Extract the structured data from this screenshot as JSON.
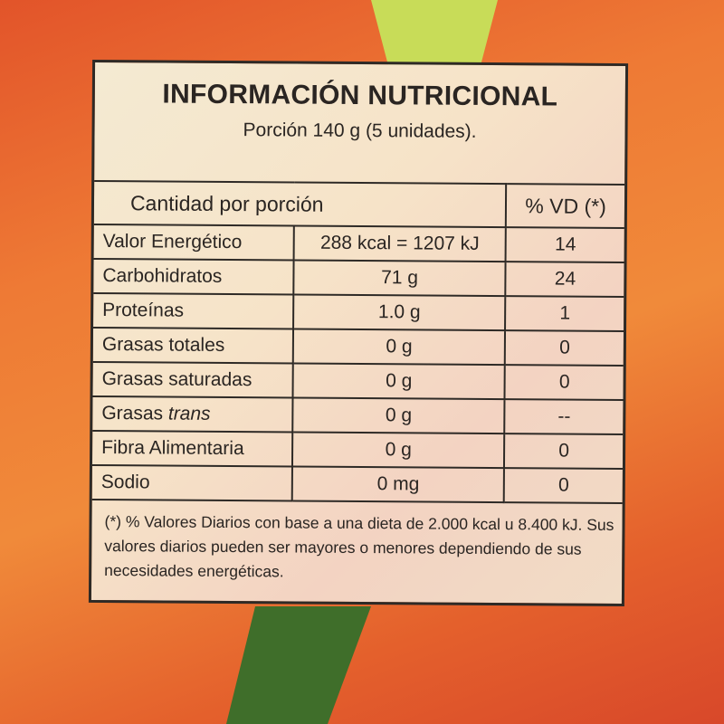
{
  "label": {
    "title": "INFORMACIÓN NUTRICIONAL",
    "portion": "Porción 140 g (5 unidades).",
    "header": {
      "amount": "Cantidad por porción",
      "vd": "% VD (*)"
    },
    "rows": [
      {
        "name": "Valor Energético",
        "value": "288 kcal = 1207 kJ",
        "vd": "14"
      },
      {
        "name": "Carbohidratos",
        "value": "71 g",
        "vd": "24"
      },
      {
        "name": "Proteínas",
        "value": "1.0 g",
        "vd": "1"
      },
      {
        "name": "Grasas totales",
        "value": "0 g",
        "vd": "0"
      },
      {
        "name": "Grasas saturadas",
        "value": "0 g",
        "vd": "0"
      },
      {
        "name": "Grasas ",
        "name_italic": "trans",
        "value": "0 g",
        "vd": "--"
      },
      {
        "name": "Fibra Alimentaria",
        "value": "0 g",
        "vd": "0"
      },
      {
        "name": "Sodio",
        "value": "0 mg",
        "vd": "0"
      }
    ],
    "footnote": "(*) % Valores Diarios con base a una dieta de 2.000 kcal u 8.400 kJ. Sus valores diarios pueden ser mayores o menores dependiendo de sus necesidades energéticas."
  }
}
